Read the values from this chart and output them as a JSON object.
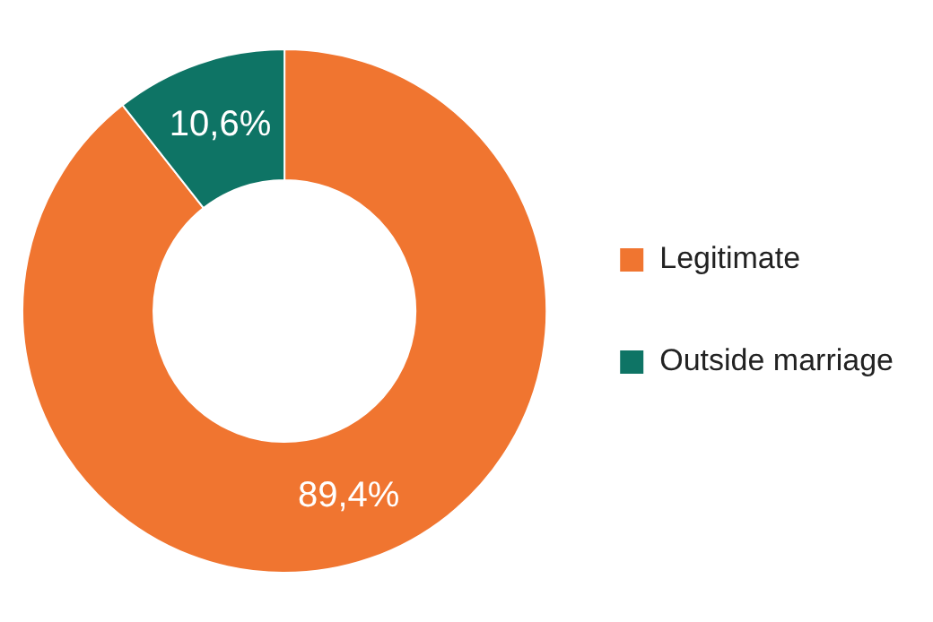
{
  "chart_data": {
    "type": "donut",
    "categories": [
      "Legitimate",
      "Outside marriage"
    ],
    "values": [
      89.4,
      10.6
    ],
    "colors": [
      "#f07530",
      "#0e7465"
    ],
    "value_labels": [
      "89,4%",
      "10,6%"
    ],
    "legend": "right"
  }
}
